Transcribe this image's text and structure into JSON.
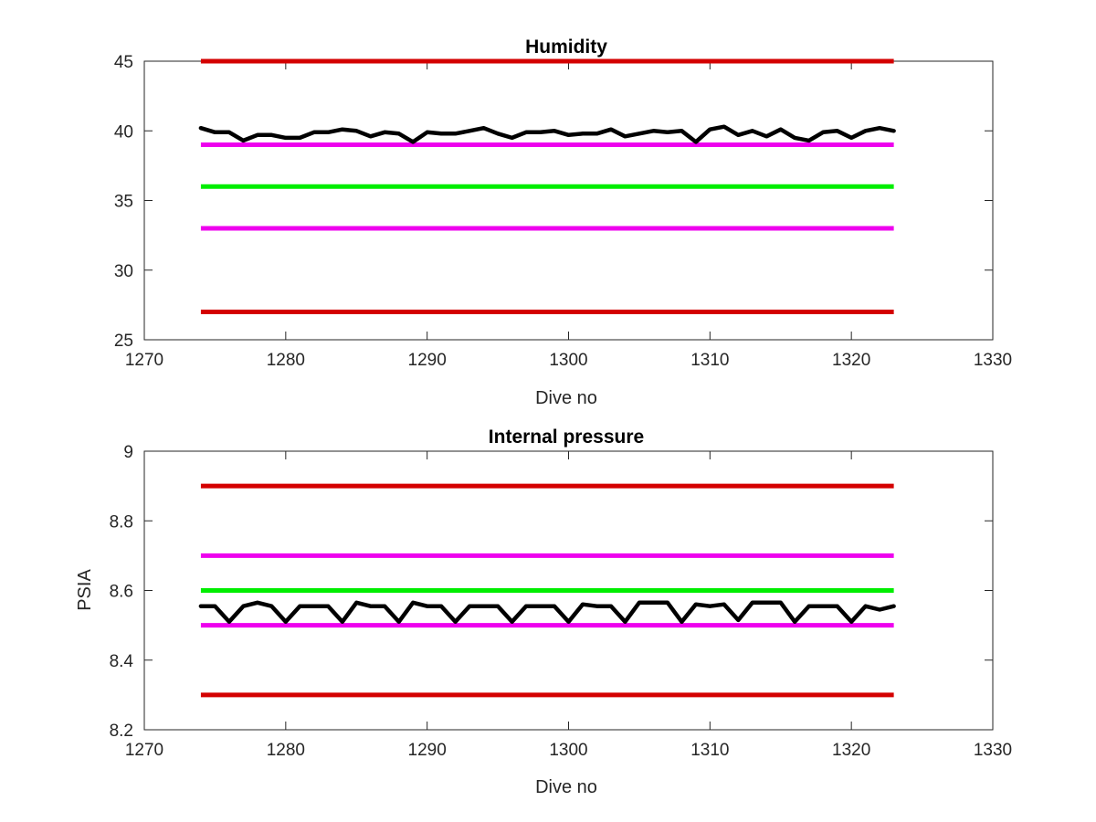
{
  "colors": {
    "red": "#d40000",
    "magenta": "#ee00ee",
    "green": "#00ee00",
    "black": "#000000",
    "axis": "#262626"
  },
  "chart_data": [
    {
      "type": "line",
      "title": "Humidity",
      "xlabel": "Dive no",
      "ylabel": "",
      "xlim": [
        1270,
        1330
      ],
      "ylim": [
        25,
        45
      ],
      "xticks": [
        1270,
        1280,
        1290,
        1300,
        1310,
        1320,
        1330
      ],
      "yticks": [
        25,
        30,
        35,
        40,
        45
      ],
      "xtick_labels": [
        "1270",
        "1280",
        "1290",
        "1300",
        "1310",
        "1320",
        "1330"
      ],
      "ytick_labels": [
        "25",
        "30",
        "35",
        "40",
        "45"
      ],
      "grid": false,
      "legend": null,
      "reference_lines": [
        {
          "y": 45,
          "x_range": [
            1274,
            1323
          ],
          "color": "red"
        },
        {
          "y": 39,
          "x_range": [
            1274,
            1323
          ],
          "color": "magenta"
        },
        {
          "y": 36,
          "x_range": [
            1274,
            1323
          ],
          "color": "green"
        },
        {
          "y": 33,
          "x_range": [
            1274,
            1323
          ],
          "color": "magenta"
        },
        {
          "y": 27,
          "x_range": [
            1274,
            1323
          ],
          "color": "red"
        }
      ],
      "series": [
        {
          "color": "black",
          "x": [
            1274,
            1275,
            1276,
            1277,
            1278,
            1279,
            1280,
            1281,
            1282,
            1283,
            1284,
            1285,
            1286,
            1287,
            1288,
            1289,
            1290,
            1291,
            1292,
            1293,
            1294,
            1295,
            1296,
            1297,
            1298,
            1299,
            1300,
            1301,
            1302,
            1303,
            1304,
            1305,
            1306,
            1307,
            1308,
            1309,
            1310,
            1311,
            1312,
            1313,
            1314,
            1315,
            1316,
            1317,
            1318,
            1319,
            1320,
            1321,
            1322,
            1323
          ],
          "values": [
            40.2,
            39.9,
            39.9,
            39.3,
            39.7,
            39.7,
            39.5,
            39.5,
            39.9,
            39.9,
            40.1,
            40.0,
            39.6,
            39.9,
            39.8,
            39.2,
            39.9,
            39.8,
            39.8,
            40.0,
            40.2,
            39.8,
            39.5,
            39.9,
            39.9,
            40.0,
            39.7,
            39.8,
            39.8,
            40.1,
            39.6,
            39.8,
            40.0,
            39.9,
            40.0,
            39.2,
            40.1,
            40.3,
            39.7,
            40.0,
            39.6,
            40.1,
            39.5,
            39.3,
            39.9,
            40.0,
            39.5,
            40.0,
            40.2,
            40.0
          ]
        }
      ]
    },
    {
      "type": "line",
      "title": "Internal pressure",
      "xlabel": "Dive no",
      "ylabel": "PSIA",
      "xlim": [
        1270,
        1330
      ],
      "ylim": [
        8.2,
        9
      ],
      "xticks": [
        1270,
        1280,
        1290,
        1300,
        1310,
        1320,
        1330
      ],
      "yticks": [
        8.2,
        8.4,
        8.6,
        8.8,
        9
      ],
      "xtick_labels": [
        "1270",
        "1280",
        "1290",
        "1300",
        "1310",
        "1320",
        "1330"
      ],
      "ytick_labels": [
        "8.2",
        "8.4",
        "8.6",
        "8.8",
        "9"
      ],
      "grid": false,
      "legend": null,
      "reference_lines": [
        {
          "y": 8.9,
          "x_range": [
            1274,
            1323
          ],
          "color": "red"
        },
        {
          "y": 8.7,
          "x_range": [
            1274,
            1323
          ],
          "color": "magenta"
        },
        {
          "y": 8.6,
          "x_range": [
            1274,
            1323
          ],
          "color": "green"
        },
        {
          "y": 8.5,
          "x_range": [
            1274,
            1323
          ],
          "color": "magenta"
        },
        {
          "y": 8.3,
          "x_range": [
            1274,
            1323
          ],
          "color": "red"
        }
      ],
      "series": [
        {
          "color": "black",
          "x": [
            1274,
            1275,
            1276,
            1277,
            1278,
            1279,
            1280,
            1281,
            1282,
            1283,
            1284,
            1285,
            1286,
            1287,
            1288,
            1289,
            1290,
            1291,
            1292,
            1293,
            1294,
            1295,
            1296,
            1297,
            1298,
            1299,
            1300,
            1301,
            1302,
            1303,
            1304,
            1305,
            1306,
            1307,
            1308,
            1309,
            1310,
            1311,
            1312,
            1313,
            1314,
            1315,
            1316,
            1317,
            1318,
            1319,
            1320,
            1321,
            1322,
            1323
          ],
          "values": [
            8.555,
            8.555,
            8.51,
            8.555,
            8.565,
            8.555,
            8.51,
            8.555,
            8.555,
            8.555,
            8.51,
            8.565,
            8.555,
            8.555,
            8.51,
            8.565,
            8.555,
            8.555,
            8.51,
            8.555,
            8.555,
            8.555,
            8.51,
            8.555,
            8.555,
            8.555,
            8.51,
            8.56,
            8.555,
            8.555,
            8.51,
            8.565,
            8.565,
            8.565,
            8.51,
            8.56,
            8.555,
            8.56,
            8.515,
            8.565,
            8.565,
            8.565,
            8.51,
            8.555,
            8.555,
            8.555,
            8.51,
            8.555,
            8.545,
            8.555
          ]
        }
      ]
    }
  ]
}
